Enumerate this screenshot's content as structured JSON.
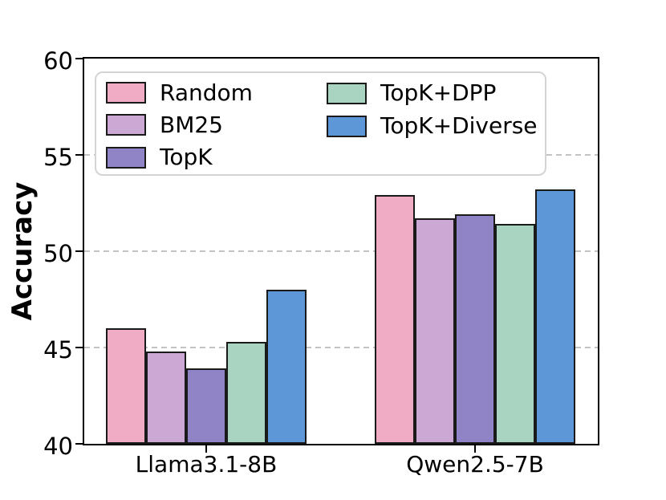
{
  "chart_data": {
    "type": "bar",
    "title": "",
    "xlabel": "",
    "ylabel": "Accuracy",
    "categories": [
      "Llama3.1-8B",
      "Qwen2.5-7B"
    ],
    "series": [
      {
        "name": "Random",
        "color": "#F1ACC5",
        "values": [
          46.0,
          52.9
        ]
      },
      {
        "name": "BM25",
        "color": "#CBA9D4",
        "values": [
          44.8,
          51.7
        ]
      },
      {
        "name": "TopK",
        "color": "#9184C6",
        "values": [
          43.9,
          51.9
        ]
      },
      {
        "name": "TopK+DPP",
        "color": "#A8D4C1",
        "values": [
          45.3,
          51.4
        ]
      },
      {
        "name": "TopK+Diverse",
        "color": "#5D97D8",
        "values": [
          48.0,
          53.2
        ]
      }
    ],
    "ylim": [
      40,
      60
    ],
    "yticks": [
      40,
      45,
      50,
      55,
      60
    ],
    "gridlines": {
      "values": [
        45,
        50,
        55
      ],
      "style": "dashed",
      "color": "#c3c3c3"
    },
    "legend": {
      "position": "upper-left",
      "columns": 2,
      "order": "column-major"
    },
    "bar_edge_color": "#1a1a1a"
  }
}
